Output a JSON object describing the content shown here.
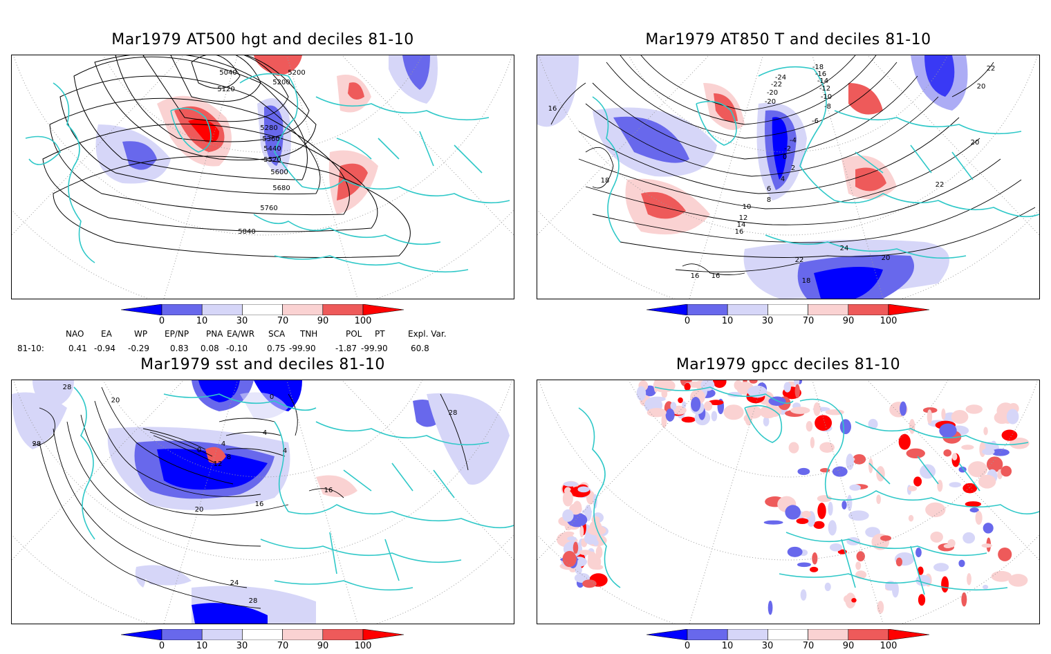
{
  "panels": [
    {
      "title": "Mar1979 AT500 hgt and deciles 81-10",
      "contour_labels": [
        "5040",
        "5120",
        "5200",
        "5200",
        "5280",
        "5360",
        "5440",
        "5520",
        "5600",
        "5680",
        "5760",
        "5840"
      ]
    },
    {
      "title": "Mar1979 AT850 T and deciles 81-10",
      "contour_labels": [
        "16",
        "16",
        "16",
        "18",
        "18",
        "20",
        "20",
        "20",
        "22",
        "22",
        "22",
        "24",
        "-24",
        "-22",
        "-20",
        "-20",
        "-18",
        "-16",
        "-14",
        "-12",
        "-10",
        "-8",
        "-6",
        "-4",
        "-2",
        "0",
        "2",
        "4",
        "6",
        "8",
        "10",
        "12",
        "14",
        "16"
      ]
    },
    {
      "title": "Mar1979 sst and deciles 81-10",
      "contour_labels": [
        "28",
        "28",
        "20",
        "0",
        "4",
        "8",
        "12",
        "16",
        "20",
        "24",
        "28",
        "16",
        "4",
        "0",
        "4",
        "28"
      ]
    },
    {
      "title": "Mar1979 gpcc deciles 81-10",
      "contour_labels": []
    }
  ],
  "colorbar": {
    "labels": [
      "0",
      "10",
      "30",
      "70",
      "90",
      "100"
    ],
    "colors": [
      "#0000ff",
      "#6868ec",
      "#d6d6f8",
      "#ffffff",
      "#fad2d2",
      "#ee5a5a",
      "#ff0000"
    ]
  },
  "indices": {
    "headers": [
      "NAO",
      "EA",
      "WP",
      "EP/NP",
      "PNA",
      "EA/WR",
      "SCA",
      "TNH",
      "POL",
      "PT",
      "Expl. Var."
    ],
    "row_label": "81-10:",
    "values": [
      "0.41",
      "-0.94",
      "-0.29",
      "0.83",
      "0.08",
      "-0.10",
      "0.75",
      "-99.90",
      "-1.87",
      "-99.90",
      "60.8"
    ]
  },
  "colors": {
    "coast": "#2fc8c8",
    "contour": "#000000",
    "grid": "#9a9a9a"
  }
}
